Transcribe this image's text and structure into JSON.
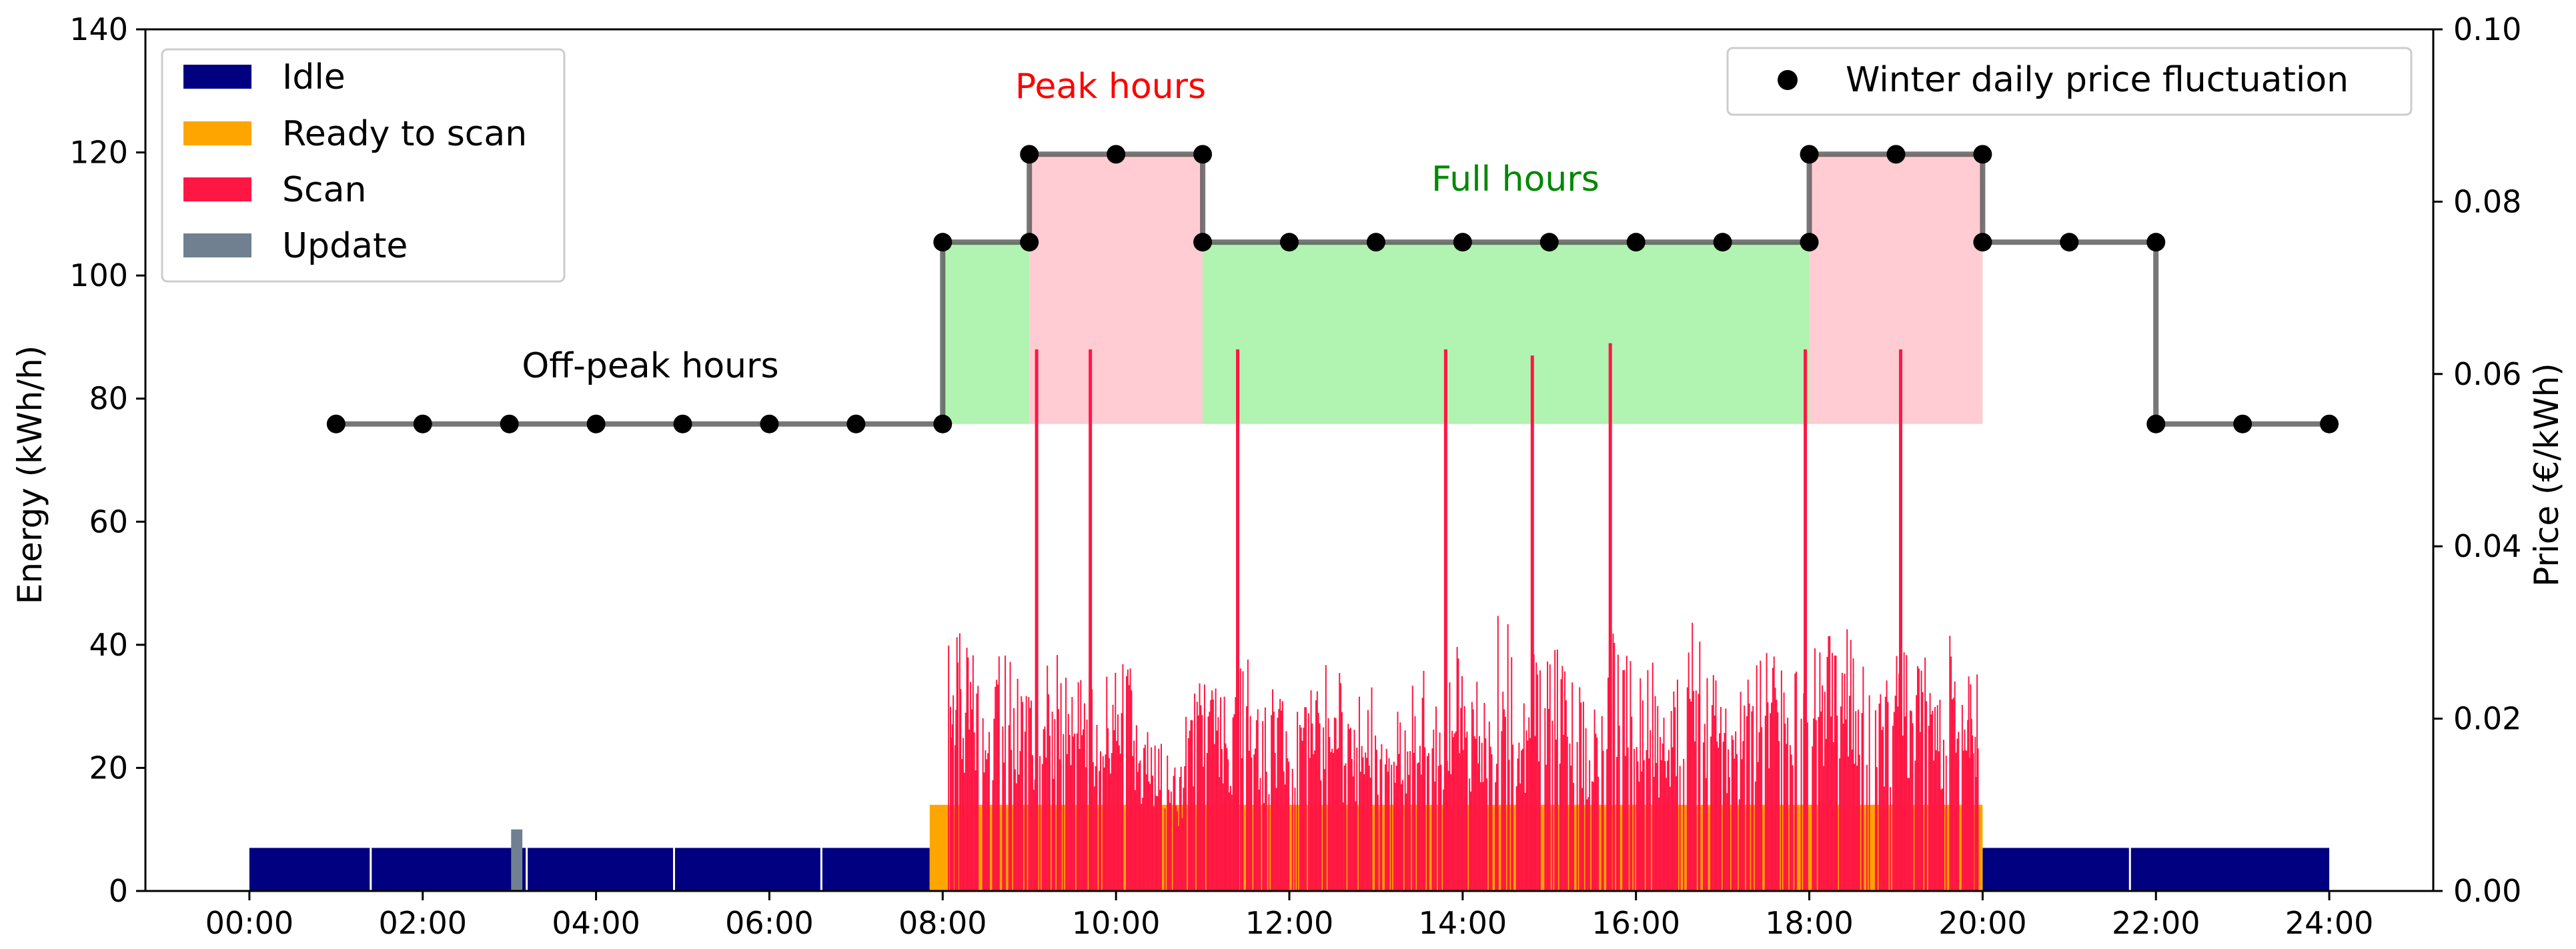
{
  "chart_data": {
    "type": "bar",
    "xlabel": "",
    "ylabel": "Energy (kWh/h)",
    "ylabel_right": "Price (€/kWh)",
    "xlim_hours": [
      -1.2,
      25.2
    ],
    "ylim": [
      0,
      140
    ],
    "ylim_right": [
      0,
      0.1
    ],
    "x_ticks": [
      "00:00",
      "02:00",
      "04:00",
      "06:00",
      "08:00",
      "10:00",
      "12:00",
      "14:00",
      "16:00",
      "18:00",
      "20:00",
      "22:00",
      "24:00"
    ],
    "y_ticks": [
      "0",
      "20",
      "40",
      "60",
      "80",
      "100",
      "120",
      "140"
    ],
    "y_ticks_right": [
      "0.00",
      "0.02",
      "0.04",
      "0.06",
      "0.08",
      "0.10"
    ],
    "grid": false,
    "legend_left": {
      "placement": "top-left",
      "items": [
        {
          "label": "Idle",
          "color": "#000080"
        },
        {
          "label": "Ready to scan",
          "color": "#FFA500"
        },
        {
          "label": "Scan",
          "color": "#FF1744"
        },
        {
          "label": "Update",
          "color": "#708090"
        }
      ]
    },
    "legend_right": {
      "placement": "top-right",
      "items": [
        {
          "label": "Winter daily price fluctuation",
          "color": "#000000"
        }
      ]
    },
    "annotations": {
      "off_peak": {
        "text": "Off-peak hours",
        "color": "#000000"
      },
      "peak": {
        "text": "Peak hours",
        "color": "#FF0000"
      },
      "full": {
        "text": "Full hours",
        "color": "#008800"
      }
    },
    "price_series": {
      "name": "Winter daily price fluctuation",
      "step_x": [
        1,
        8,
        8,
        9,
        9,
        11,
        11,
        18,
        18,
        20,
        20,
        22,
        22,
        24
      ],
      "step_y": [
        0.0542,
        0.0542,
        0.0753,
        0.0753,
        0.0855,
        0.0855,
        0.0753,
        0.0753,
        0.0855,
        0.0855,
        0.0753,
        0.0753,
        0.0542,
        0.0542
      ],
      "points_x": [
        1,
        2,
        3,
        4,
        5,
        6,
        7,
        8,
        8,
        9,
        9,
        10,
        11,
        11,
        12,
        13,
        14,
        15,
        16,
        17,
        18,
        18,
        19,
        20,
        20,
        21,
        22,
        22,
        23,
        24
      ],
      "points_y": [
        0.0542,
        0.0542,
        0.0542,
        0.0542,
        0.0542,
        0.0542,
        0.0542,
        0.0542,
        0.0753,
        0.0753,
        0.0855,
        0.0855,
        0.0855,
        0.0753,
        0.0753,
        0.0753,
        0.0753,
        0.0753,
        0.0753,
        0.0753,
        0.0753,
        0.0855,
        0.0855,
        0.0855,
        0.0753,
        0.0753,
        0.0753,
        0.0542,
        0.0542,
        0.0542
      ]
    },
    "shaded_regions": [
      {
        "name": "full",
        "x0": 8,
        "x1": 9,
        "y0": 0.0542,
        "y1": 0.0753,
        "color": "#90EE90"
      },
      {
        "name": "peak",
        "x0": 9,
        "x1": 11,
        "y0": 0.0542,
        "y1": 0.0855,
        "color": "#FFB6C1"
      },
      {
        "name": "full",
        "x0": 11,
        "x1": 18,
        "y0": 0.0542,
        "y1": 0.0753,
        "color": "#90EE90"
      },
      {
        "name": "peak",
        "x0": 18,
        "x1": 20,
        "y0": 0.0542,
        "y1": 0.0855,
        "color": "#FFB6C1"
      }
    ],
    "energy_blocks": [
      {
        "name": "Idle",
        "x0": 0,
        "x1": 7.85,
        "value": 7,
        "color": "#000080"
      },
      {
        "name": "Idle",
        "x0": 20.0,
        "x1": 24.0,
        "value": 7,
        "color": "#000080"
      },
      {
        "name": "Ready to scan",
        "x0": 7.85,
        "x1": 20.0,
        "value": 14,
        "color": "#FFA500"
      },
      {
        "name": "Update",
        "x0": 3.02,
        "x1": 3.15,
        "value": 10,
        "color": "#708090"
      }
    ],
    "idle_gaps": [
      1.4,
      3.2,
      4.9,
      6.6,
      21.7
    ],
    "scan_spikes": [
      {
        "x": 9.08,
        "value": 88
      },
      {
        "x": 9.7,
        "value": 88
      },
      {
        "x": 11.4,
        "value": 88
      },
      {
        "x": 13.8,
        "value": 88
      },
      {
        "x": 14.8,
        "value": 87
      },
      {
        "x": 15.7,
        "value": 89
      },
      {
        "x": 17.95,
        "value": 88
      },
      {
        "x": 19.05,
        "value": 88
      }
    ],
    "scan_envelope": {
      "x": [
        8.05,
        8.2,
        8.4,
        8.6,
        8.8,
        9.0,
        9.2,
        9.4,
        9.6,
        9.8,
        10.0,
        10.2,
        10.4,
        10.6,
        10.8,
        11.0,
        11.2,
        11.4,
        11.6,
        11.8,
        12.0,
        12.2,
        12.4,
        12.6,
        12.8,
        13.0,
        13.2,
        13.4,
        13.6,
        13.8,
        14.0,
        14.2,
        14.4,
        14.6,
        14.8,
        15.0,
        15.2,
        15.4,
        15.6,
        15.8,
        16.0,
        16.2,
        16.4,
        16.6,
        16.8,
        17.0,
        17.2,
        17.4,
        17.6,
        17.8,
        18.0,
        18.2,
        18.4,
        18.6,
        18.8,
        19.0,
        19.2,
        19.4,
        19.6,
        19.8
      ],
      "values": [
        42,
        40,
        38,
        40,
        36,
        32,
        39,
        38,
        36,
        38,
        38,
        30,
        25,
        22,
        34,
        36,
        32,
        38,
        30,
        33,
        30,
        34,
        40,
        30,
        35,
        32,
        30,
        37,
        32,
        40,
        34,
        33,
        45,
        33,
        39,
        41,
        35,
        30,
        43,
        39,
        38,
        32,
        37,
        44,
        38,
        30,
        38,
        40,
        37,
        39,
        40,
        44,
        43,
        37,
        35,
        39,
        38,
        33,
        42,
        38
      ]
    }
  }
}
